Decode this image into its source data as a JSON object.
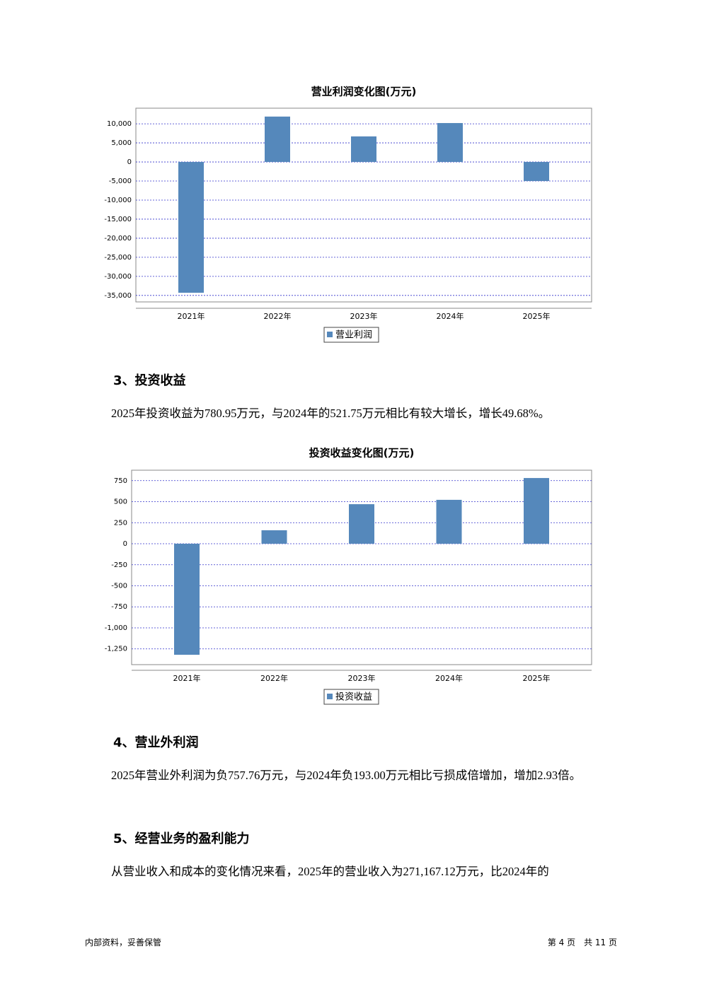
{
  "chart_data": [
    {
      "type": "bar",
      "title": "营业利润变化图(万元)",
      "categories": [
        "2021年",
        "2022年",
        "2023年",
        "2024年",
        "2025年"
      ],
      "series": [
        {
          "name": "营业利润",
          "color": "#5588bb",
          "values": [
            -34300,
            11900,
            6700,
            10200,
            -5000
          ]
        }
      ],
      "ylim": [
        -36700,
        14100
      ],
      "yticks": [
        {
          "value": 10000,
          "label": "10,000"
        },
        {
          "value": 5000,
          "label": "5,000"
        },
        0,
        {
          "value": -5000,
          "label": "-5,000"
        },
        {
          "value": -10000,
          "label": "-10,000"
        },
        {
          "value": -15000,
          "label": "-15,000"
        },
        {
          "value": -20000,
          "label": "-20,000"
        },
        {
          "value": -25000,
          "label": "-25,000"
        },
        {
          "value": -30000,
          "label": "-30,000"
        },
        {
          "value": -35000,
          "label": "-35,000"
        }
      ],
      "grid": true
    },
    {
      "type": "bar",
      "title": "投资收益变化图(万元)",
      "categories": [
        "2021年",
        "2022年",
        "2023年",
        "2024年",
        "2025年"
      ],
      "series": [
        {
          "name": "投资收益",
          "color": "#5588bb",
          "values": [
            -1320,
            160,
            470,
            521.75,
            780.95
          ]
        }
      ],
      "ylim": [
        -1437,
        874
      ],
      "yticks": [
        750,
        500,
        250,
        0,
        -250,
        -500,
        -750,
        {
          "value": -1000,
          "label": "-1,000"
        },
        {
          "value": -1250,
          "label": "-1,250"
        }
      ],
      "grid": true
    }
  ],
  "sections": [
    {
      "heading": "3、投资收益",
      "paragraph": "2025年投资收益为780.95万元，与2024年的521.75万元相比有较大增长，增长49.68%。"
    },
    {
      "heading": "4、营业外利润",
      "paragraph": "2025年营业外利润为负757.76万元，与2024年负193.00万元相比亏损成倍增加，增加2.93倍。"
    },
    {
      "heading": "5、经营业务的盈利能力",
      "paragraph": "从营业收入和成本的变化情况来看，2025年的营业收入为271,167.12万元，比2024年的"
    }
  ],
  "footer": {
    "left": "内部资料，妥善保管",
    "right": "第 4 页　共 11 页"
  }
}
